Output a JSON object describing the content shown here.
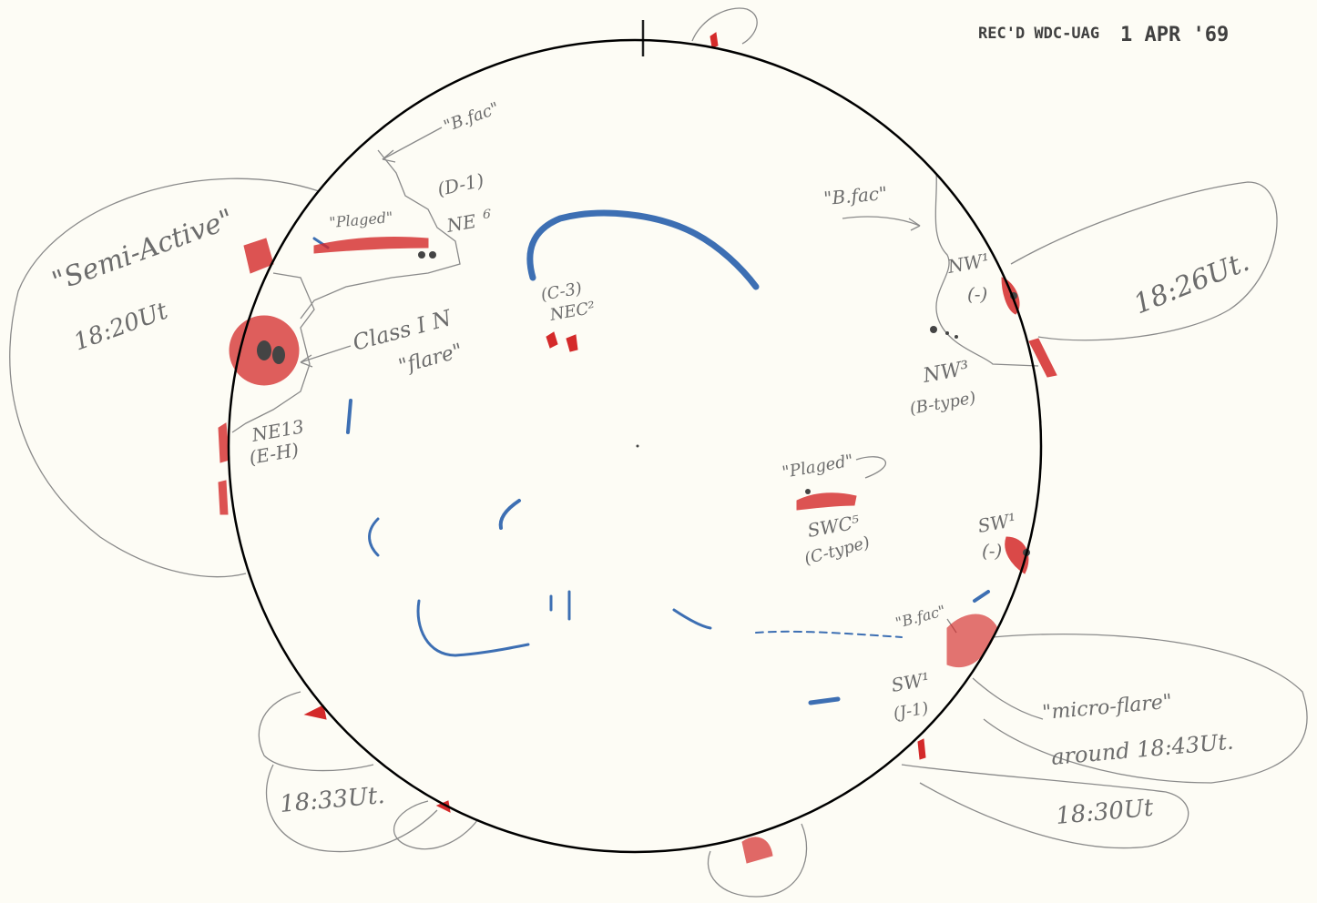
{
  "stamp": {
    "received": "REC'D WDC-UAG",
    "date": "1 APR '69"
  },
  "colors": {
    "pencil": "#6c6c6c",
    "red": "#d42a2a",
    "blue": "#3d6fb3",
    "disk": "#000000",
    "paper": "#fdfcf5"
  },
  "labels": {
    "bfac_top": "\"B.fac\"",
    "d1": "(D-1)",
    "ne6_a": "NE",
    "ne6_b": "6",
    "plaged_left": "\"Plaged\"",
    "semi_active_a": "\"Semi-Active\"",
    "semi_active_b": "18:20Ut",
    "class_in_a": "Class I N",
    "class_in_b": "\"flare\"",
    "ne13_a": "NE13",
    "ne13_b": "(E-H)",
    "c3": "(C-3)",
    "nec2": "NEC²",
    "bfac_right": "\"B.fac\"",
    "nw1": "NW¹",
    "nw1_type": "(-)",
    "nw3": "NW³",
    "nw3_type": "(B-type)",
    "time_1826": "18:26Ut.",
    "plaged_right": "\"Plaged\"",
    "swc5": "SWC⁵",
    "swc5_type": "(C-type)",
    "sw1": "SW¹",
    "sw1_type": "(-)",
    "bfac_lower": "\"B.fac\"",
    "sw1_lower": "SW¹",
    "sw1_lower_type": "(J-1)",
    "microflare_a": "\"micro-flare\"",
    "microflare_b": "around 18:43Ut.",
    "time_1830": "18:30Ut",
    "time_1833": "18:33Ut."
  }
}
